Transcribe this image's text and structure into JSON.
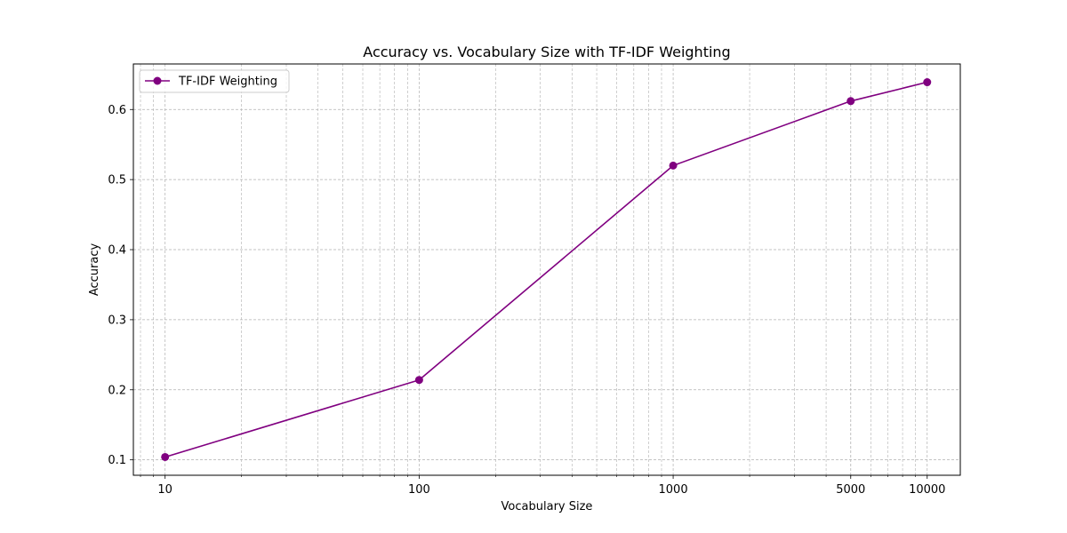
{
  "chart_data": {
    "type": "line",
    "title": "Accuracy vs. Vocabulary Size with TF-IDF Weighting",
    "xlabel": "Vocabulary Size",
    "ylabel": "Accuracy",
    "xscale": "log",
    "xlim": [
      7.5,
      13500
    ],
    "ylim": [
      0.078,
      0.665
    ],
    "xticks": [
      10,
      100,
      1000,
      5000,
      10000
    ],
    "xtick_labels": [
      "10",
      "100",
      "1000",
      "5000",
      "10000"
    ],
    "yticks": [
      0.1,
      0.2,
      0.3,
      0.4,
      0.5,
      0.6
    ],
    "ytick_labels": [
      "0.1",
      "0.2",
      "0.3",
      "0.4",
      "0.5",
      "0.6"
    ],
    "grid": true,
    "legend_position": "upper left",
    "series": [
      {
        "name": "TF-IDF Weighting",
        "color": "#800080",
        "marker": "circle",
        "x": [
          10,
          100,
          1000,
          5000,
          10000
        ],
        "y": [
          0.104,
          0.214,
          0.52,
          0.612,
          0.639
        ]
      }
    ]
  }
}
